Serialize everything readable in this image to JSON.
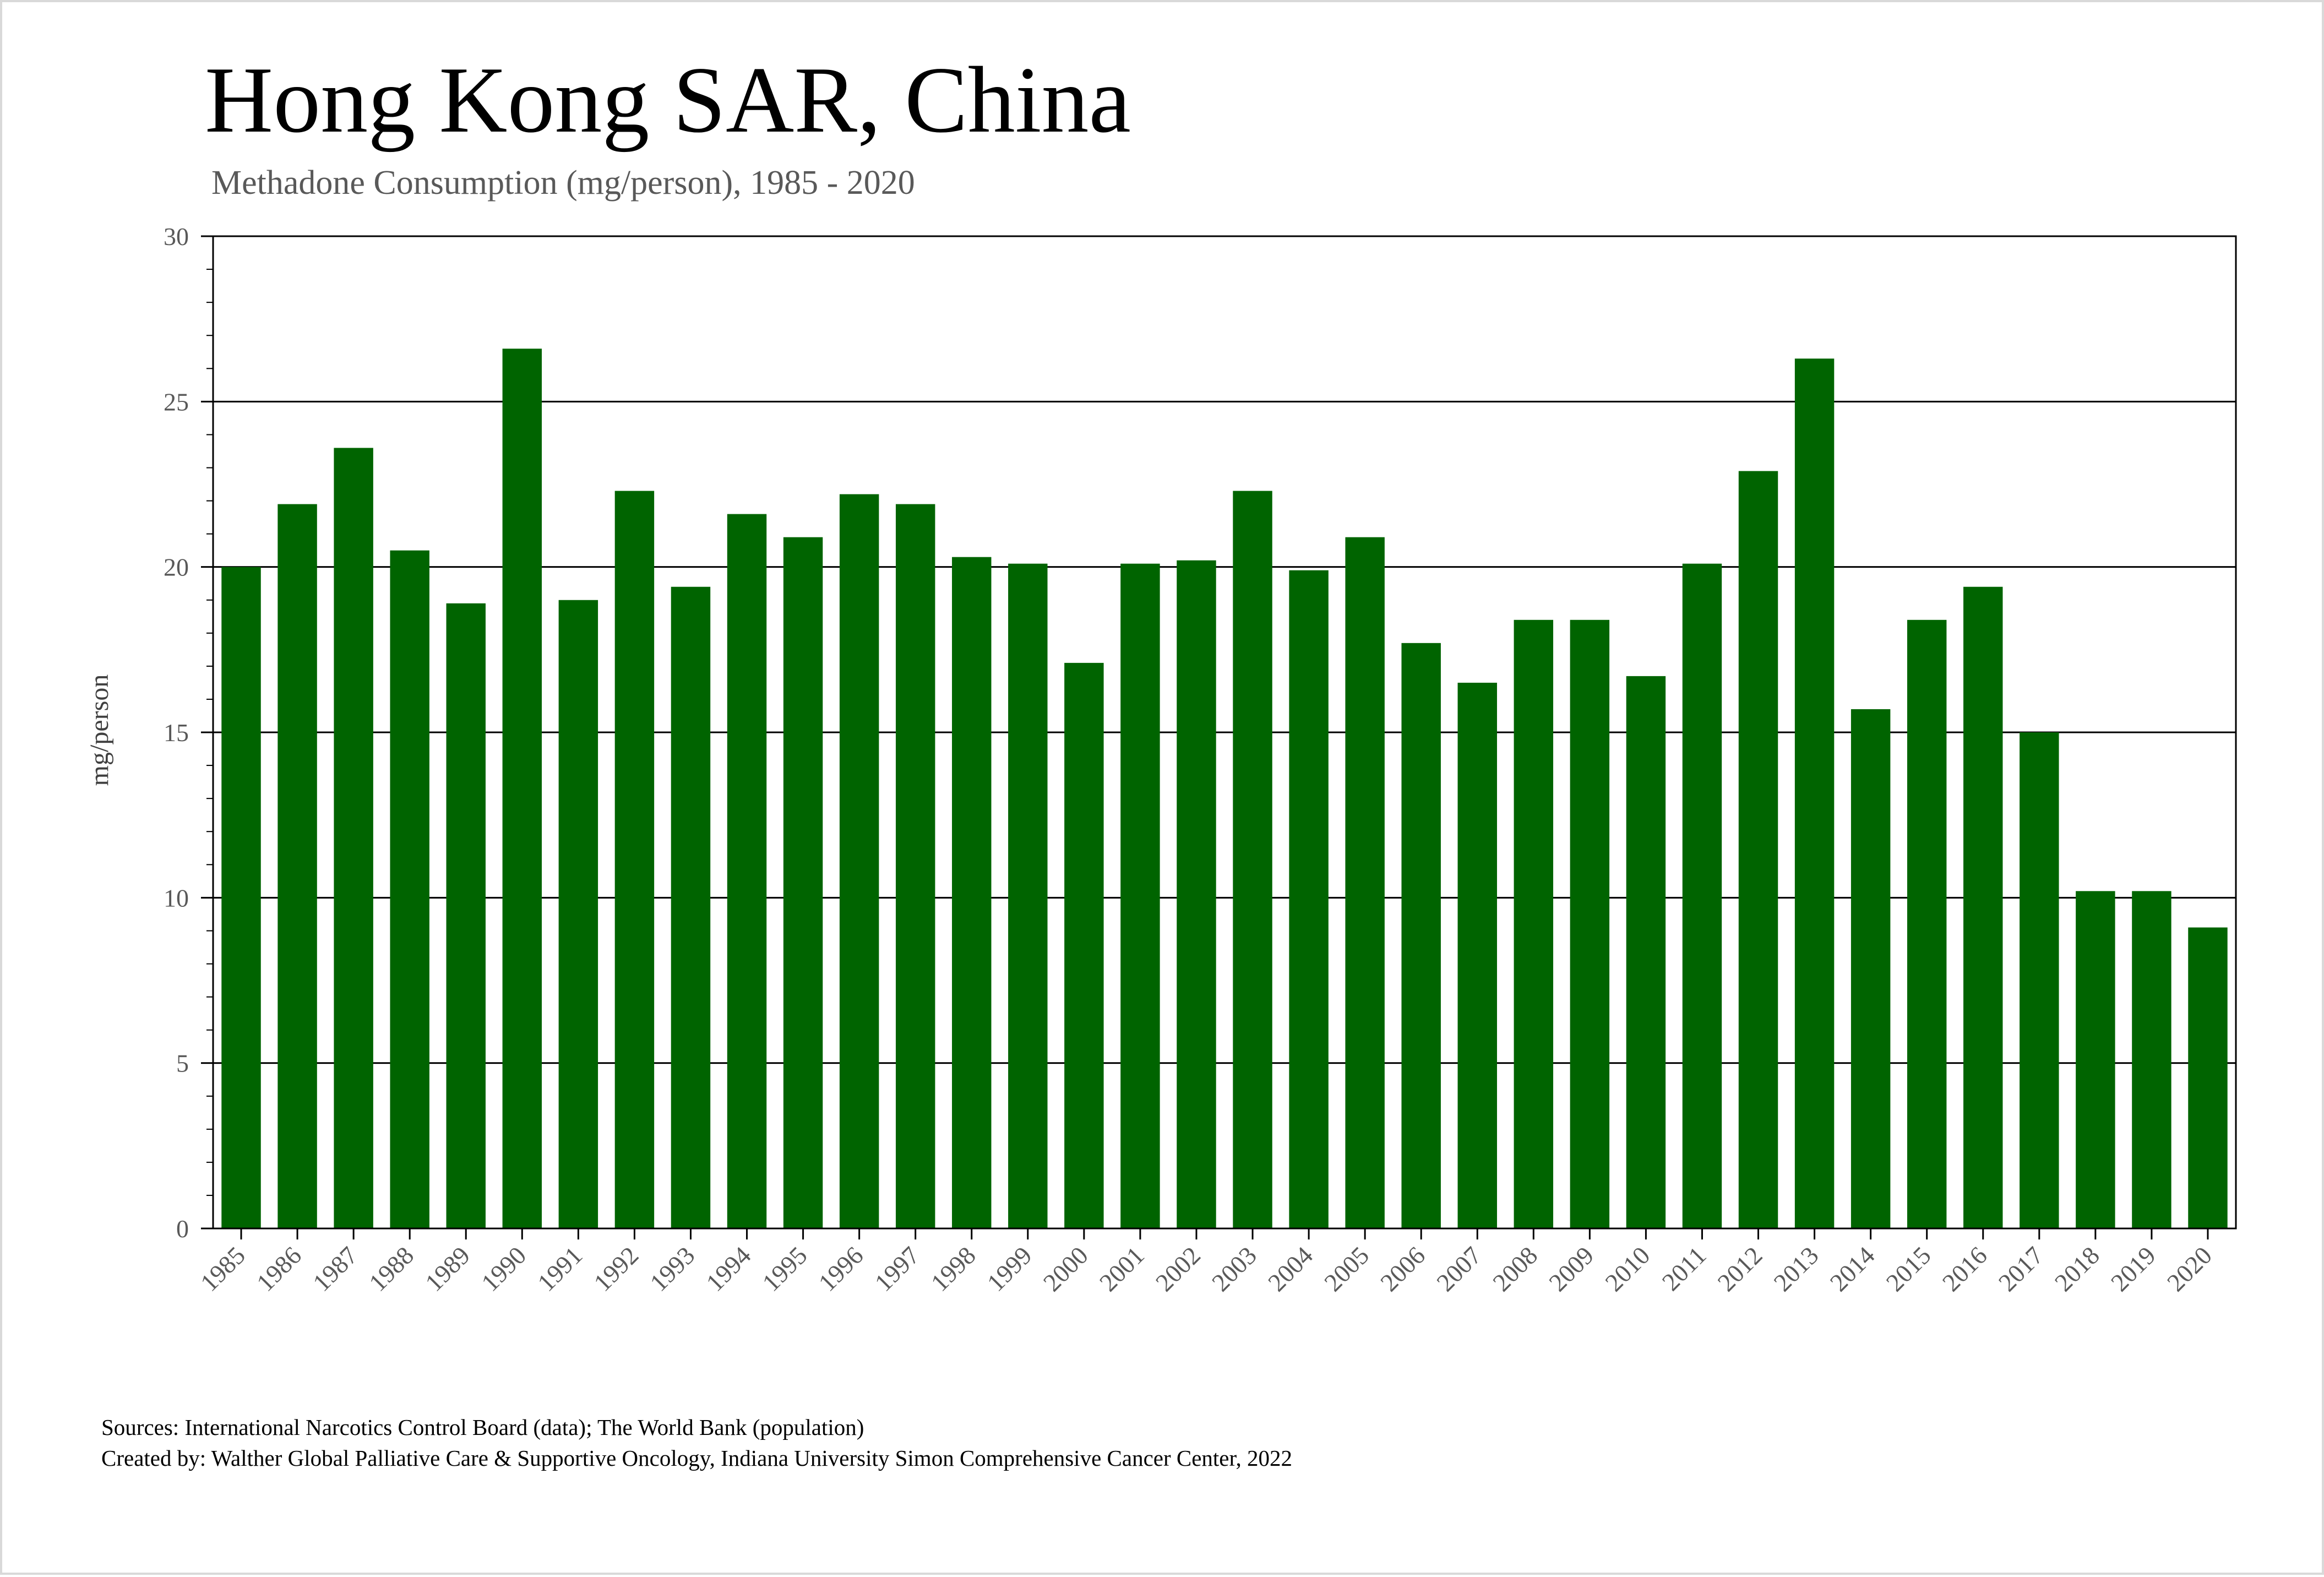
{
  "chart_data": {
    "type": "bar",
    "title": "Hong Kong SAR, China",
    "subtitle": "Methadone Consumption (mg/person), 1985 - 2020",
    "ylabel": "mg/person",
    "xlabel": "",
    "ylim": [
      0,
      30
    ],
    "yticks": [
      0,
      5,
      10,
      15,
      20,
      25,
      30
    ],
    "grid": true,
    "legend": "none",
    "bar_color": "#006400",
    "categories": [
      "1985",
      "1986",
      "1987",
      "1988",
      "1989",
      "1990",
      "1991",
      "1992",
      "1993",
      "1994",
      "1995",
      "1996",
      "1997",
      "1998",
      "1999",
      "2000",
      "2001",
      "2002",
      "2003",
      "2004",
      "2005",
      "2006",
      "2007",
      "2008",
      "2009",
      "2010",
      "2011",
      "2012",
      "2013",
      "2014",
      "2015",
      "2016",
      "2017",
      "2018",
      "2019",
      "2020"
    ],
    "values": [
      20.0,
      21.9,
      23.6,
      20.5,
      18.9,
      26.6,
      19.0,
      22.3,
      19.4,
      21.6,
      20.9,
      22.2,
      21.9,
      20.3,
      20.1,
      17.1,
      20.1,
      20.2,
      22.3,
      19.9,
      20.9,
      17.7,
      16.5,
      18.4,
      18.4,
      16.7,
      20.1,
      22.9,
      26.3,
      15.7,
      18.4,
      19.4,
      15.0,
      10.2,
      10.2,
      9.1
    ]
  },
  "sources": {
    "data_line": "Sources: International Narcotics Control Board (data); The World Bank (population)",
    "created_line": "Created by: Walther Global Palliative Care & Supportive Oncology, Indiana University Simon Comprehensive Cancer Center, 2022"
  }
}
